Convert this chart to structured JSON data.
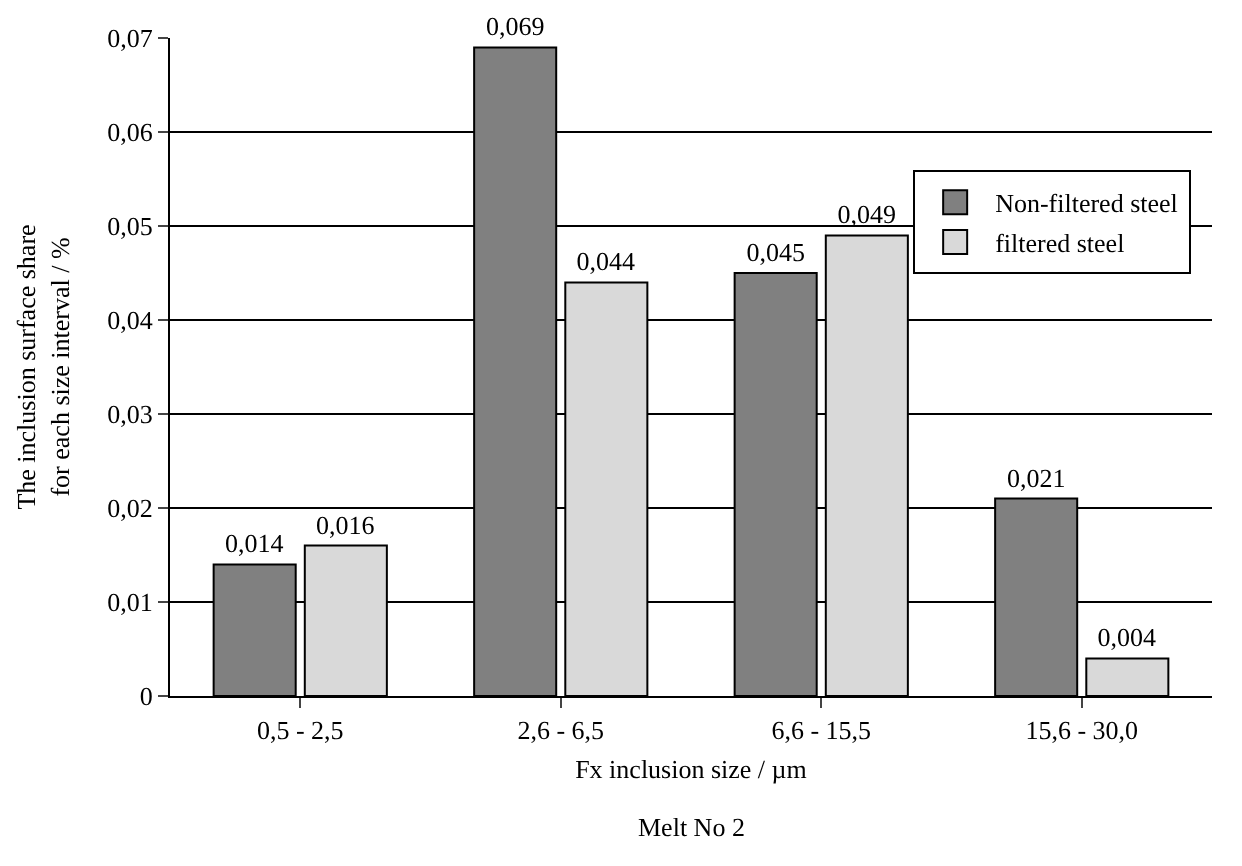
{
  "chart_data": {
    "type": "bar",
    "categories": [
      "0,5 - 2,5",
      "2,6 - 6,5",
      "6,6 - 15,5",
      "15,6 - 30,0"
    ],
    "series": [
      {
        "name": "Non-filtered steel",
        "color": "#808080",
        "values": [
          0.014,
          0.069,
          0.045,
          0.021
        ],
        "value_labels": [
          "0,014",
          "0,069",
          "0,045",
          "0,021"
        ]
      },
      {
        "name": "filtered steel",
        "color": "#d9d9d9",
        "values": [
          0.016,
          0.044,
          0.049,
          0.004
        ],
        "value_labels": [
          "0,016",
          "0,044",
          "0,049",
          "0,004"
        ]
      }
    ],
    "ylabel": "The inclusion surface share for each size interval / %",
    "xlabel": "Fx inclusion size / µm",
    "annotations": [
      "Melt No 2"
    ],
    "ylim": [
      0,
      0.07
    ],
    "yticks": [
      0,
      {
        "value": 0.01,
        "label": "0,01"
      },
      {
        "value": 0.02,
        "label": "0,02"
      },
      {
        "value": 0.03,
        "label": "0,03"
      },
      {
        "value": 0.04,
        "label": "0,04"
      },
      {
        "value": 0.05,
        "label": "0,05"
      },
      {
        "value": 0.06,
        "label": "0,06"
      },
      {
        "value": 0.07,
        "label": "0,07"
      }
    ],
    "grid": "y",
    "legend": "right"
  }
}
